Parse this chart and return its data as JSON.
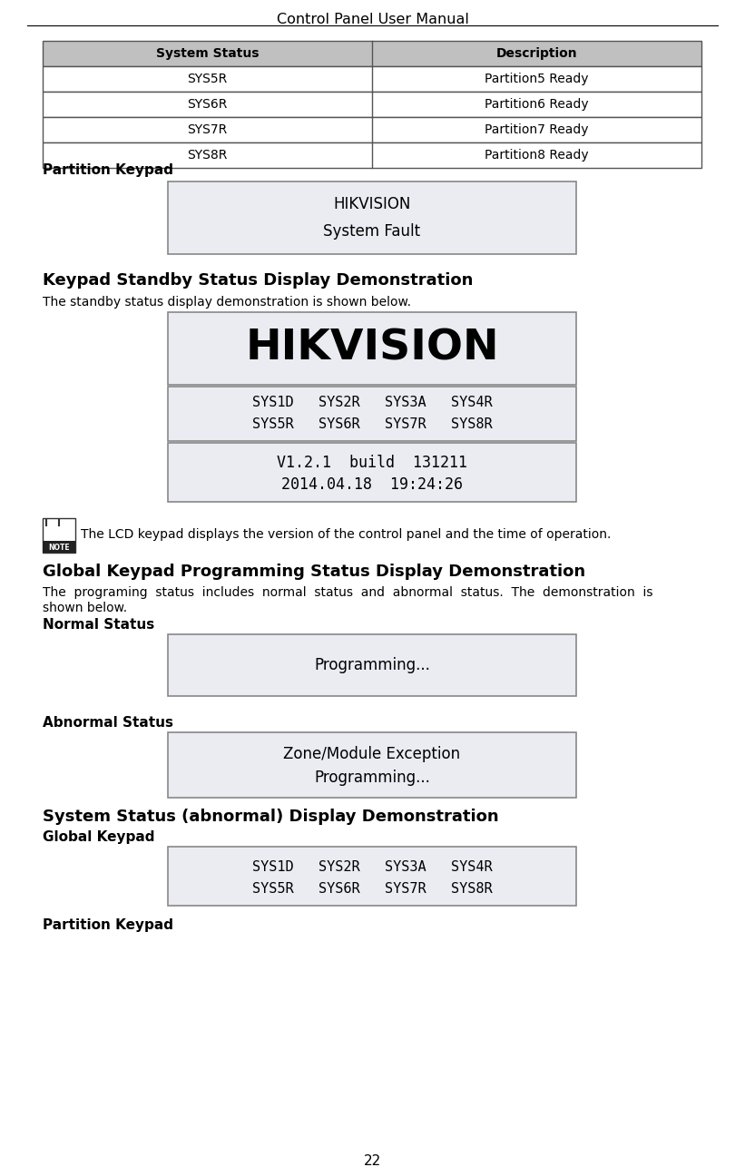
{
  "title": "Control Panel User Manual",
  "page_num": "22",
  "table_header": [
    "System Status",
    "Description"
  ],
  "table_rows": [
    [
      "SYS5R",
      "Partition5 Ready"
    ],
    [
      "SYS6R",
      "Partition6 Ready"
    ],
    [
      "SYS7R",
      "Partition7 Ready"
    ],
    [
      "SYS8R",
      "Partition8 Ready"
    ]
  ],
  "table_header_bg": "#c0c0c0",
  "section1_label": "Partition Keypad",
  "box1_lines": [
    "HIKVISION",
    "System Fault"
  ],
  "section2_label": "Keypad Standby Status Display Demonstration",
  "section2_sub": "The standby status display demonstration is shown below.",
  "box2_line1": "HIKVISION",
  "box3_lines": [
    "SYS1D   SYS2R   SYS3A   SYS4R",
    "SYS5R   SYS6R   SYS7R   SYS8R"
  ],
  "box4_lines": [
    "V1.2.1  build  131211",
    "2014.04.18  19:24:26"
  ],
  "note_text": "The LCD keypad displays the version of the control panel and the time of operation.",
  "section3_label": "Global Keypad Programming Status Display Demonstration",
  "section3_sub": "The  programing  status  includes  normal  status  and  abnormal  status.  The  demonstration  is\nshown below.",
  "normal_label": "Normal Status",
  "normal_box": "Programming...",
  "abnormal_label": "Abnormal Status",
  "abnormal_box": [
    "Zone/Module Exception",
    "Programming..."
  ],
  "section4_label": "System Status (abnormal) Display Demonstration",
  "global_keypad_label": "Global Keypad",
  "global_box_lines": [
    "SYS1D   SYS2R   SYS3A   SYS4R",
    "SYS5R   SYS6R   SYS7R   SYS8R"
  ],
  "partition_keypad_label2": "Partition Keypad",
  "box_bg": "#eaecf2",
  "box_border": "#888888",
  "table_border": "#555555"
}
